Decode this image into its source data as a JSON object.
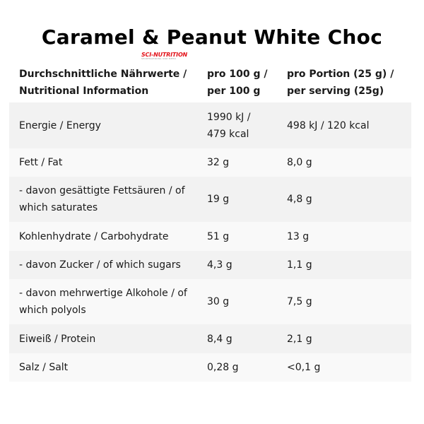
{
  "title": "Caramel & Peanut White Choc",
  "logo": {
    "name": "SCI-NUTRITION",
    "tagline": "SPORTNAHRUNG UND MEHR"
  },
  "header": {
    "col1": [
      "Durchschnittliche Nährwerte /",
      "Nutritional Information"
    ],
    "col2": [
      "pro 100 g /",
      "per 100 g"
    ],
    "col3": [
      "pro Portion (25 g) /",
      "per serving (25g)"
    ]
  },
  "rows": [
    {
      "label": [
        "Energie / Energy"
      ],
      "per100": [
        "1990 kJ /",
        "479 kcal"
      ],
      "serving": "498 kJ / 120 kcal"
    },
    {
      "label": [
        "Fett / Fat"
      ],
      "per100": [
        "32 g"
      ],
      "serving": "8,0 g"
    },
    {
      "label": [
        "- davon gesättigte Fettsäuren / of",
        "which saturates"
      ],
      "per100": [
        "19 g"
      ],
      "serving": "4,8 g"
    },
    {
      "label": [
        "Kohlenhydrate / Carbohydrate"
      ],
      "per100": [
        "51 g"
      ],
      "serving": "13 g"
    },
    {
      "label": [
        "- davon Zucker / of which sugars"
      ],
      "per100": [
        "4,3 g"
      ],
      "serving": "1,1 g"
    },
    {
      "label": [
        "- davon mehrwertige Alkohole / of",
        "which polyols"
      ],
      "per100": [
        "30 g"
      ],
      "serving": "7,5 g"
    },
    {
      "label": [
        "Eiweiß / Protein"
      ],
      "per100": [
        "8,4 g"
      ],
      "serving": "2,1 g"
    },
    {
      "label": [
        "Salz / Salt"
      ],
      "per100": [
        "0,28 g"
      ],
      "serving": "<0,1 g"
    }
  ]
}
